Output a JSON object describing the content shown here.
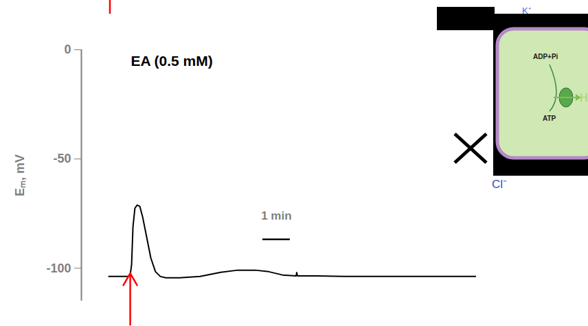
{
  "chart_data": {
    "type": "line",
    "annotation": "EA (0.5 mM)",
    "y_label": "Eₘ, mV",
    "x": [
      0,
      0.7,
      0.78,
      0.83,
      0.88,
      0.95,
      1.03,
      1.13,
      1.23,
      1.38,
      1.53,
      1.7,
      1.88,
      2.08,
      2.58,
      3.33,
      4.08,
      4.7,
      5.33,
      5.83,
      6.33,
      6.83,
      6.85,
      6.88,
      7.58,
      8.58,
      11.08,
      13.4
    ],
    "values": [
      -103.8,
      -103.8,
      -103.1,
      -98.4,
      -81.1,
      -72.6,
      -71.1,
      -71.7,
      -76.4,
      -85.8,
      -95.3,
      -101.6,
      -103.8,
      -104.4,
      -104.4,
      -103.8,
      -101.9,
      -100.9,
      -100.9,
      -101.6,
      -103.1,
      -103.5,
      -102,
      -103.5,
      -103.5,
      -103.8,
      -103.8,
      -103.8
    ],
    "color": "#000000",
    "xlim": [
      -1,
      13.4
    ],
    "ylim": [
      -115,
      0
    ],
    "yticks": [
      0,
      -50,
      -100
    ],
    "tick_labels": "y",
    "grid": false,
    "scale_bar": {
      "value": 1,
      "label": "1 min",
      "color": "#000000"
    },
    "stimulus": {
      "x": 0.78,
      "color": "#ff0000"
    }
  },
  "inset": {
    "labels": {
      "k": "K⁺",
      "adp": "ADP+Pi",
      "atp": "ATP",
      "h": "H",
      "cl": "Cl⁻"
    }
  }
}
